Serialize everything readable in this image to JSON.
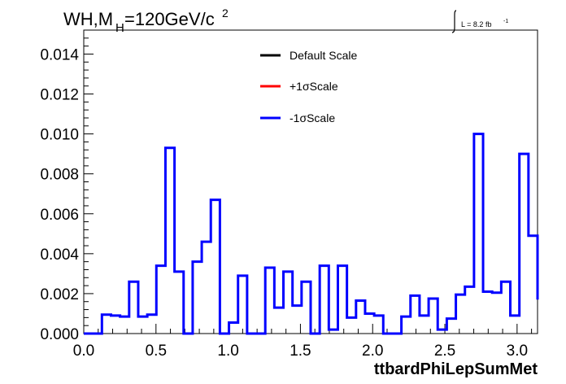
{
  "chart_data": {
    "type": "line",
    "title_main": "WH,M",
    "title_sub": "H",
    "title_rest": "=120GeV/c",
    "title_sup": "2",
    "lumi_label": "L = 8.2 fb",
    "lumi_sup": "-1",
    "xlabel": "ttbardPhiLepSumMet",
    "ylabel": "",
    "xlim": [
      0,
      3.1416
    ],
    "ylim": [
      0,
      0.0152
    ],
    "x_ticks": [
      {
        "v": 0.0,
        "label": "0.0"
      },
      {
        "v": 0.5,
        "label": "0.5"
      },
      {
        "v": 1.0,
        "label": "1.0"
      },
      {
        "v": 1.5,
        "label": "1.5"
      },
      {
        "v": 2.0,
        "label": "2.0"
      },
      {
        "v": 2.5,
        "label": "2.5"
      },
      {
        "v": 3.0,
        "label": "3.0"
      }
    ],
    "y_ticks": [
      {
        "v": 0.0,
        "label": "0.000"
      },
      {
        "v": 0.002,
        "label": "0.002"
      },
      {
        "v": 0.004,
        "label": "0.004"
      },
      {
        "v": 0.006,
        "label": "0.006"
      },
      {
        "v": 0.008,
        "label": "0.008"
      },
      {
        "v": 0.01,
        "label": "0.010"
      },
      {
        "v": 0.012,
        "label": "0.012"
      },
      {
        "v": 0.014,
        "label": "0.014"
      }
    ],
    "bin_count": 50,
    "legend_position": "top-center",
    "legend": [
      {
        "label": "Default Scale",
        "color": "#000000"
      },
      {
        "label": "+1σScale",
        "color": "#ff0000"
      },
      {
        "label": "-1σScale",
        "color": "#0000ff"
      }
    ],
    "series": [
      {
        "name": "-1σScale",
        "color": "#0000ff",
        "values": [
          0,
          0,
          0.00095,
          0.0009,
          0.00085,
          0.0026,
          0.00085,
          0.00095,
          0.0034,
          0.0093,
          0.0031,
          0,
          0.0036,
          0.0046,
          0.0067,
          0,
          0.00055,
          0.0029,
          0,
          0,
          0.0033,
          0.0013,
          0.0031,
          0.0014,
          0.0026,
          0,
          0.0034,
          0.0002,
          0.0034,
          0.0008,
          0.00165,
          0.001,
          0.0009,
          0,
          0,
          0.00085,
          0.0019,
          0.0009,
          0.00175,
          0.0002,
          0.00075,
          0.00195,
          0.00235,
          0.01,
          0.0021,
          0.00205,
          0.0026,
          0.0009,
          0.009,
          0.0049
        ]
      }
    ],
    "tail_value": 0.0017
  }
}
